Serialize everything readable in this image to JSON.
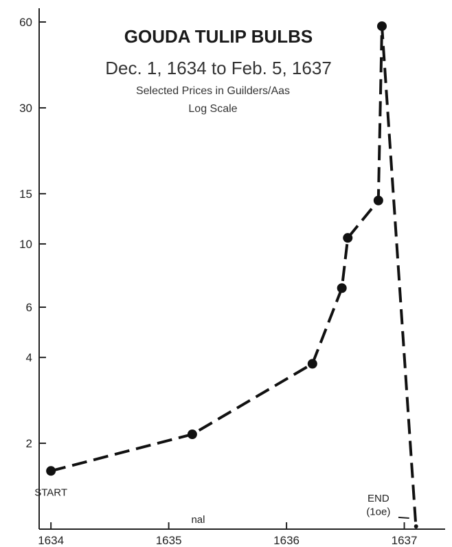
{
  "chart_data": {
    "type": "line",
    "title": "GOUDA TULIP BULBS",
    "subtitle": "Dec. 1, 1634 to Feb. 5, 1637",
    "notes": [
      "Selected Prices in Guilders/Aas",
      "Log Scale"
    ],
    "y_scale": "log",
    "ylim": [
      1,
      60
    ],
    "y_ticks": [
      60,
      30,
      15,
      10,
      6,
      4,
      2
    ],
    "xlim": [
      1633.9,
      1637.3
    ],
    "x_ticks": [
      "1634",
      "1635",
      "1636",
      "1637"
    ],
    "series": [
      {
        "style": "dashed",
        "color": "#111111",
        "x": [
          1634.0,
          1635.2,
          1636.22,
          1636.47,
          1636.52,
          1636.78,
          1636.81,
          1637.1
        ],
        "y": [
          1.6,
          2.15,
          3.8,
          7.0,
          10.5,
          14.2,
          58,
          1.0
        ],
        "markers": [
          true,
          true,
          true,
          true,
          true,
          true,
          true,
          false
        ]
      }
    ],
    "annotations": [
      {
        "text": "START",
        "x": 1634.0,
        "y": 1.6
      },
      {
        "text": "END",
        "x": 1636.78,
        "y": 1.25
      },
      {
        "text": "(1oe)",
        "x": 1636.78,
        "y": 1.12
      },
      {
        "text": "nal",
        "x": 1635.25,
        "y": 1.05
      }
    ]
  }
}
